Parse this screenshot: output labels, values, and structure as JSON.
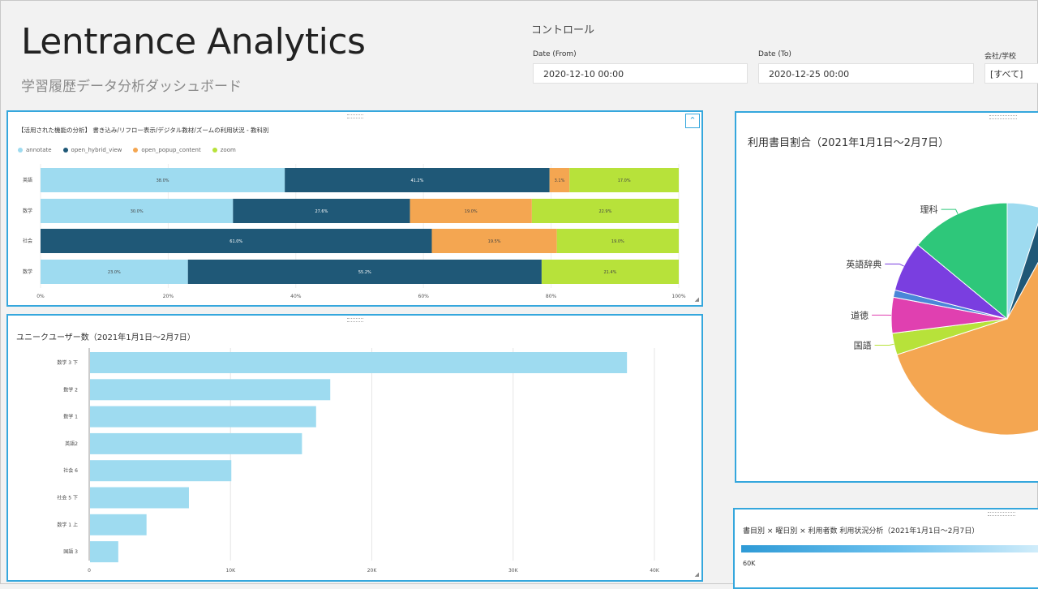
{
  "header": {
    "title": "Lentrance Analytics",
    "subtitle": "学習履歴データ分析ダッシュボード"
  },
  "controls": {
    "title": "コントロール",
    "date_from": {
      "label": "Date (From)",
      "value": "2020-12-10 00:00"
    },
    "date_to": {
      "label": "Date (To)",
      "value": "2020-12-25 00:00"
    },
    "company": {
      "label": "会社/学校",
      "value": "[すべて]"
    }
  },
  "colors": {
    "accent": "#35a7dd",
    "annotate": "#9edbf0",
    "open_hybrid_view": "#1f5877",
    "open_popup_content": "#f4a651",
    "zoom": "#b7e23a"
  },
  "panel1": {
    "title": "【活用された機能の分析】 書き込み/リフロー表示/デジタル教材/ズームの利用状況 - 教科別",
    "collapse_icon": "chevron-up-icon",
    "chart_data": {
      "type": "bar",
      "orientation": "horizontal",
      "stacked": "percent",
      "categories": [
        "英語",
        "数学",
        "社会",
        "数学"
      ],
      "series": [
        {
          "name": "annotate",
          "values": [
            38.0,
            30.0,
            0,
            23.0
          ]
        },
        {
          "name": "open_hybrid_view",
          "values": [
            41.2,
            27.6,
            61.0,
            55.2
          ]
        },
        {
          "name": "open_popup_content",
          "values": [
            3.1,
            19.0,
            19.5,
            0
          ]
        },
        {
          "name": "zoom",
          "values": [
            17.0,
            22.9,
            19.0,
            21.4
          ]
        }
      ],
      "labels": [
        [
          "38.0%",
          "41.2%",
          "3.1%",
          "17.0%"
        ],
        [
          "30.0%",
          "27.6%",
          "19.0%",
          "22.9%"
        ],
        [
          "",
          "61.0%",
          "19.5%",
          "19.0%"
        ],
        [
          "23.0%",
          "55.2%",
          "",
          "21.4%"
        ]
      ],
      "xticks": [
        "0%",
        "20%",
        "40%",
        "60%",
        "80%",
        "100%"
      ],
      "xlim": [
        0,
        100
      ]
    }
  },
  "panel2": {
    "title": "ユニークユーザー数（2021年1月1日～2月7日）",
    "chart_data": {
      "type": "bar",
      "orientation": "horizontal",
      "categories": [
        "数学 3 下",
        "数学 2",
        "数学 1",
        "英語2",
        "社会 6",
        "社会 5 下",
        "数学 1 上",
        "国語 3"
      ],
      "values": [
        38000,
        17000,
        16000,
        15000,
        10000,
        7000,
        4000,
        2000
      ],
      "xticks": [
        "0",
        "10K",
        "20K",
        "30K",
        "40K"
      ],
      "xlim": [
        0,
        40000
      ]
    }
  },
  "panel3": {
    "title": "利用書目割合（2021年1月1日～2月7日）",
    "chart_data": {
      "type": "pie",
      "labels": [
        "理科",
        "英語辞典",
        "道徳",
        "国語"
      ],
      "slices": [
        {
          "label": "",
          "value": 5,
          "color": "#9edbf0"
        },
        {
          "label": "",
          "value": 3,
          "color": "#1f5877"
        },
        {
          "label": "",
          "value": 62,
          "color": "#f4a651"
        },
        {
          "label": "国語",
          "value": 3,
          "color": "#b7e23a"
        },
        {
          "label": "道徳",
          "value": 5,
          "color": "#e040b0"
        },
        {
          "label": "",
          "value": 1,
          "color": "#4a86d8"
        },
        {
          "label": "英語辞典",
          "value": 7,
          "color": "#7a3ee0"
        },
        {
          "label": "理科",
          "value": 14,
          "color": "#2ec77a"
        }
      ]
    }
  },
  "panel4": {
    "title": "書目別 × 曜日別 × 利用者数 利用状況分析（2021年1月1日～2月7日）",
    "legend_max": "60K"
  }
}
